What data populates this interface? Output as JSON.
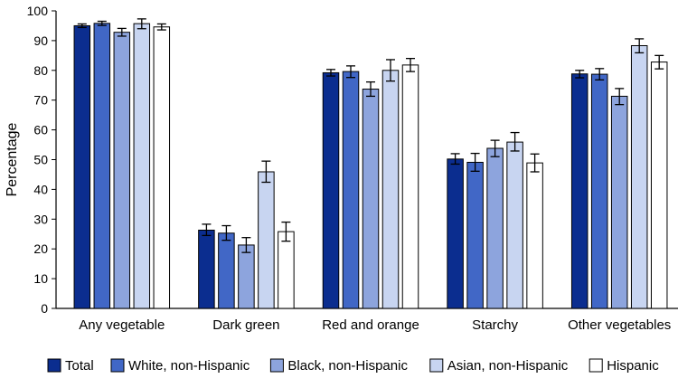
{
  "chart_data": {
    "type": "bar",
    "title": "",
    "xlabel": "",
    "ylabel": "Percentage",
    "ylim": [
      0,
      100
    ],
    "yticks": [
      0,
      10,
      20,
      30,
      40,
      50,
      60,
      70,
      80,
      90,
      100
    ],
    "grid": false,
    "legend_position": "bottom",
    "error_bars": true,
    "categories": [
      "Any vegetable",
      "Dark green",
      "Red and orange",
      "Starchy",
      "Other vegetables"
    ],
    "series": [
      {
        "name": "Total",
        "color": "#0b2d8f",
        "values": [
          95.0,
          26.3,
          79.2,
          50.2,
          78.8
        ],
        "ci_low": [
          94.4,
          24.5,
          78.1,
          48.5,
          77.5
        ],
        "ci_high": [
          95.6,
          28.3,
          80.3,
          52.0,
          80.0
        ]
      },
      {
        "name": "White, non-Hispanic",
        "color": "#4167c6",
        "values": [
          95.8,
          25.3,
          79.6,
          49.1,
          78.7
        ],
        "ci_low": [
          95.1,
          22.9,
          77.6,
          46.1,
          76.8
        ],
        "ci_high": [
          96.5,
          27.8,
          81.5,
          52.1,
          80.6
        ]
      },
      {
        "name": "Black, non-Hispanic",
        "color": "#8da4dd",
        "values": [
          92.8,
          21.3,
          73.7,
          53.8,
          71.3
        ],
        "ci_low": [
          91.5,
          18.8,
          71.3,
          51.0,
          68.5
        ],
        "ci_high": [
          94.1,
          23.8,
          76.1,
          56.5,
          73.9
        ]
      },
      {
        "name": "Asian, non-Hispanic",
        "color": "#c8d5f1",
        "values": [
          95.7,
          45.9,
          80.0,
          55.9,
          88.3
        ],
        "ci_low": [
          94.0,
          42.4,
          76.4,
          52.9,
          85.9
        ],
        "ci_high": [
          97.3,
          49.5,
          83.6,
          59.1,
          90.6
        ]
      },
      {
        "name": "Hispanic",
        "color": "#ffffff",
        "values": [
          94.6,
          25.8,
          81.8,
          48.9,
          82.8
        ],
        "ci_low": [
          93.6,
          22.6,
          79.6,
          45.9,
          80.5
        ],
        "ci_high": [
          95.6,
          29.0,
          84.0,
          51.9,
          85.0
        ]
      }
    ]
  }
}
